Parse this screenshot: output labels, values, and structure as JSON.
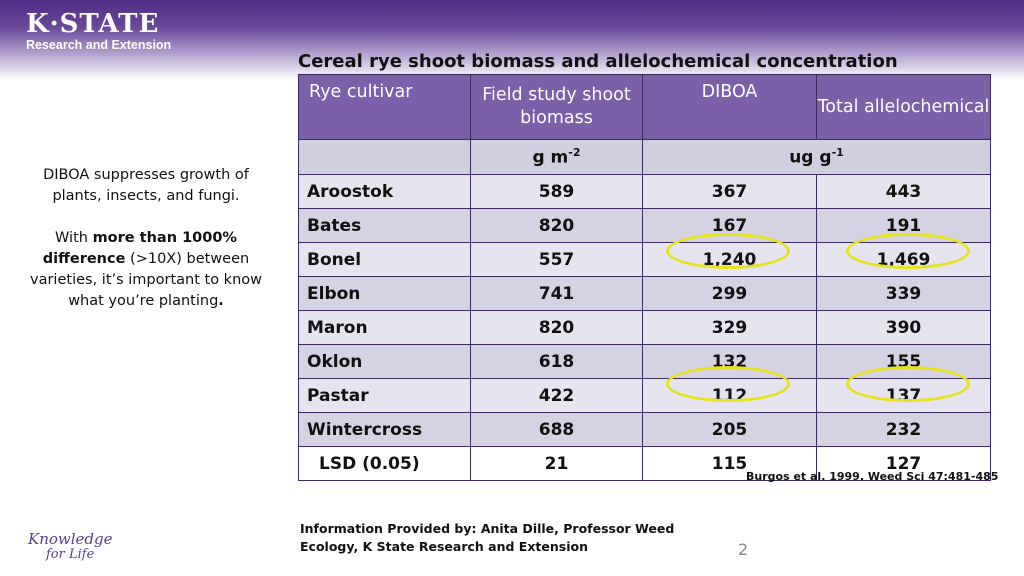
{
  "header": {
    "logo_main": "K·STATE",
    "logo_sub": "Research and Extension"
  },
  "title": "Cereal rye shoot biomass and allelochemical concentration",
  "side_text": {
    "p1": "DIBOA suppresses growth of plants, insects, and fungi.",
    "p2_pre": "With ",
    "p2_bold1": "more than 1000% difference",
    "p2_mid": " (>10X) between varieties, it’s important to know what you’re planting",
    "p2_end": "."
  },
  "table": {
    "headers": [
      "Rye cultivar",
      "Field study shoot biomass",
      "DIBOA",
      "Total allelochemical"
    ],
    "units": {
      "biomass_base": "g m",
      "biomass_exp": "-2",
      "conc_base": "ug g",
      "conc_exp": "-1"
    },
    "rows": [
      {
        "cultivar": "Aroostok",
        "biomass": "589",
        "diboa": "367",
        "total": "443"
      },
      {
        "cultivar": "Bates",
        "biomass": "820",
        "diboa": "167",
        "total": "191"
      },
      {
        "cultivar": "Bonel",
        "biomass": "557",
        "diboa": "1,240",
        "total": "1,469"
      },
      {
        "cultivar": "Elbon",
        "biomass": "741",
        "diboa": "299",
        "total": "339"
      },
      {
        "cultivar": "Maron",
        "biomass": "820",
        "diboa": "329",
        "total": "390"
      },
      {
        "cultivar": "Oklon",
        "biomass": "618",
        "diboa": "132",
        "total": "155"
      },
      {
        "cultivar": "Pastar",
        "biomass": "422",
        "diboa": "112",
        "total": "137"
      },
      {
        "cultivar": "Wintercross",
        "biomass": "688",
        "diboa": "205",
        "total": "232"
      }
    ],
    "lsd": {
      "label": "LSD (0.05)",
      "biomass": "21",
      "diboa": "115",
      "total": "127"
    }
  },
  "highlight_color": "#e6e21c",
  "citation": "Burgos et al. 1999. Weed Sci 47:481-485",
  "footer": {
    "info": "Information Provided by: Anita Dille, Professor Weed Ecology, K State Research and Extension",
    "page_number": "2",
    "tagline_line1": "Knowledge",
    "tagline_line2": "for Life"
  }
}
